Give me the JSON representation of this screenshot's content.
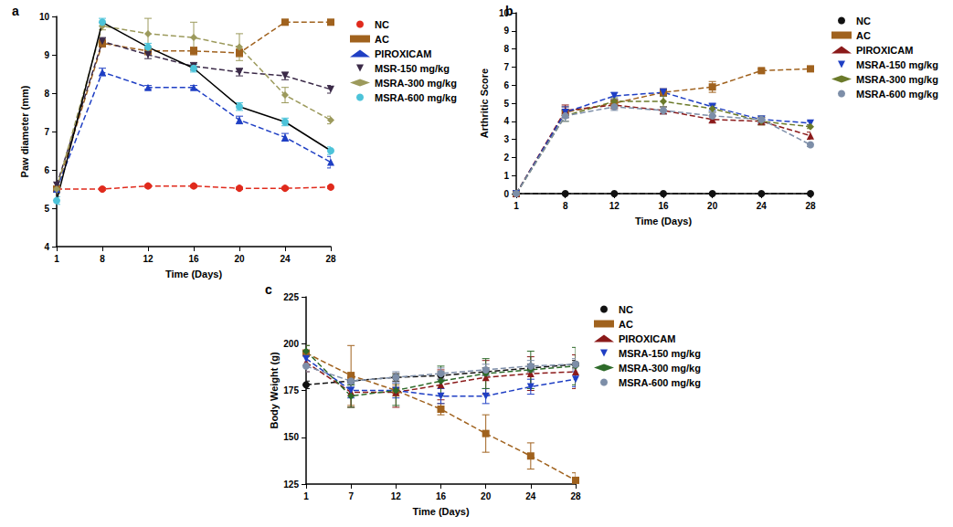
{
  "chart_data": [
    {
      "type": "line",
      "title": "a",
      "x_label": "Time (Days)",
      "y_label": "Paw diameter (mm)",
      "categories": [
        "1",
        "8",
        "12",
        "16",
        "20",
        "24",
        "28"
      ],
      "ylim": [
        4,
        10
      ],
      "yticks": [
        4,
        5,
        6,
        7,
        8,
        9,
        10
      ],
      "grid": false,
      "series": [
        {
          "name": "NC",
          "color": "#e02a1c",
          "marker": "circle",
          "line_style": "dashed",
          "values": [
            5.5,
            5.5,
            5.58,
            5.58,
            5.52,
            5.52,
            5.55
          ],
          "errors": [
            0.03,
            0.03,
            0.03,
            0.03,
            0.03,
            0.03,
            0.03
          ]
        },
        {
          "name": "AC",
          "color": "#a0621e",
          "marker": "square",
          "line_style": "dashed",
          "values": [
            5.5,
            9.3,
            9.1,
            9.1,
            9.05,
            9.85,
            9.85
          ],
          "errors": [
            0.1,
            0.1,
            0.1,
            0.1,
            0.1,
            0.05,
            0.05
          ]
        },
        {
          "name": "PIROXICAM",
          "color": "#1f3fc4",
          "marker": "triangle",
          "line_style": "dashed",
          "values": [
            5.5,
            8.55,
            8.15,
            8.15,
            7.3,
            6.85,
            6.2
          ],
          "errors": [
            0.1,
            0.1,
            0.05,
            0.05,
            0.1,
            0.1,
            0.15
          ]
        },
        {
          "name": "MSR-150 mg/kg",
          "color": "#3b2a48",
          "marker": "triangle_down",
          "line_style": "dashed",
          "values": [
            5.6,
            9.35,
            9.0,
            8.7,
            8.55,
            8.45,
            8.1
          ],
          "errors": [
            0.1,
            0.1,
            0.1,
            0.1,
            0.1,
            0.1,
            0.1
          ]
        },
        {
          "name": "MSRA-300 mg/kg",
          "color": "#9c9a5c",
          "marker": "diamond",
          "line_style": "dashed",
          "values": [
            5.5,
            9.75,
            9.55,
            9.45,
            9.2,
            7.95,
            7.3
          ],
          "errors": [
            0.1,
            0.1,
            0.4,
            0.4,
            0.35,
            0.2,
            0.1
          ]
        },
        {
          "name": "MSRA-600 mg/kg",
          "color": "#4cc3d9",
          "marker": "circle",
          "line_style": "solid",
          "values": [
            5.2,
            9.85,
            9.2,
            8.65,
            7.65,
            7.25,
            6.5
          ],
          "errors": [
            0.1,
            0.1,
            0.1,
            0.1,
            0.1,
            0.1,
            0.1
          ]
        }
      ]
    },
    {
      "type": "line",
      "title": "b",
      "x_label": "Time (Days)",
      "y_label": "Arthritic Score",
      "categories": [
        "1",
        "8",
        "12",
        "16",
        "20",
        "24",
        "28"
      ],
      "ylim": [
        0,
        10
      ],
      "yticks": [
        0,
        1,
        2,
        3,
        4,
        5,
        6,
        7,
        8,
        9,
        10
      ],
      "grid": false,
      "series": [
        {
          "name": "NC",
          "color": "#111111",
          "marker": "circle",
          "line_style": "dashed",
          "values": [
            0,
            0,
            0,
            0,
            0,
            0,
            0
          ],
          "errors": [
            0,
            0,
            0,
            0,
            0,
            0,
            0
          ]
        },
        {
          "name": "AC",
          "color": "#a0621e",
          "marker": "square",
          "line_style": "dashed",
          "values": [
            0,
            4.5,
            5.0,
            5.6,
            5.9,
            6.8,
            6.9
          ],
          "errors": [
            0,
            0.3,
            0.2,
            0.2,
            0.3,
            0.1,
            0.1
          ]
        },
        {
          "name": "PIROXICAM",
          "color": "#8b1a1a",
          "marker": "triangle",
          "line_style": "dashed",
          "values": [
            0,
            4.6,
            4.9,
            4.6,
            4.1,
            4.0,
            3.2
          ],
          "errors": [
            0,
            0.3,
            0.2,
            0.2,
            0.2,
            0.2,
            0.2
          ]
        },
        {
          "name": "MSRA-150 mg/kg",
          "color": "#1f3fc4",
          "marker": "triangle_down",
          "line_style": "dashed",
          "values": [
            0,
            4.5,
            5.4,
            5.6,
            4.8,
            4.1,
            3.9
          ],
          "errors": [
            0,
            0.3,
            0.2,
            0.2,
            0.2,
            0.2,
            0.1
          ]
        },
        {
          "name": "MSRA-300 mg/kg",
          "color": "#6b7a2a",
          "marker": "diamond",
          "line_style": "dashed",
          "values": [
            0,
            4.3,
            5.1,
            5.1,
            4.7,
            4.0,
            3.7
          ],
          "errors": [
            0,
            0.3,
            0.2,
            0.3,
            0.2,
            0.2,
            0.1
          ]
        },
        {
          "name": "MSRA-600 mg/kg",
          "color": "#7d8ea8",
          "marker": "circle",
          "line_style": "dashed",
          "values": [
            0,
            4.3,
            4.8,
            4.6,
            4.3,
            4.1,
            2.7
          ],
          "errors": [
            0,
            0.3,
            0.2,
            0.2,
            0.2,
            0.2,
            0.1
          ]
        }
      ]
    },
    {
      "type": "line",
      "title": "c",
      "x_label": "Time (Days)",
      "y_label": "Body Weight (g)",
      "categories": [
        "1",
        "7",
        "12",
        "16",
        "20",
        "24",
        "28"
      ],
      "ylim": [
        125,
        225
      ],
      "yticks": [
        125,
        150,
        175,
        200,
        225
      ],
      "grid": false,
      "series": [
        {
          "name": "NC",
          "color": "#111111",
          "marker": "circle",
          "line_style": "dashed",
          "values": [
            178,
            180,
            182,
            183,
            185,
            187,
            189
          ],
          "errors": [
            2,
            2,
            2,
            2,
            2,
            2,
            2
          ]
        },
        {
          "name": "AC",
          "color": "#a0621e",
          "marker": "square",
          "line_style": "dashed",
          "values": [
            195,
            183,
            175,
            165,
            152,
            140,
            127
          ],
          "errors": [
            4,
            16,
            3,
            3,
            10,
            7,
            4
          ]
        },
        {
          "name": "PIROXICAM",
          "color": "#8b1a1a",
          "marker": "triangle",
          "line_style": "dashed",
          "values": [
            190,
            174,
            174,
            178,
            182,
            184,
            185
          ],
          "errors": [
            5,
            8,
            8,
            8,
            9,
            9,
            9
          ]
        },
        {
          "name": "MSRA-150 mg/kg",
          "color": "#1f3fc4",
          "marker": "triangle_down",
          "line_style": "dashed",
          "values": [
            192,
            175,
            175,
            172,
            172,
            177,
            181
          ],
          "errors": [
            4,
            4,
            4,
            4,
            4,
            4,
            4
          ]
        },
        {
          "name": "MSRA-300 mg/kg",
          "color": "#2e6b2a",
          "marker": "diamond",
          "line_style": "dashed",
          "values": [
            196,
            172,
            175,
            180,
            184,
            186,
            188
          ],
          "errors": [
            3,
            6,
            8,
            8,
            8,
            10,
            10
          ]
        },
        {
          "name": "MSRA-600 mg/kg",
          "color": "#7d8ea8",
          "marker": "circle",
          "line_style": "dashed",
          "values": [
            188,
            180,
            182,
            184,
            186,
            188,
            189
          ],
          "errors": [
            3,
            3,
            3,
            3,
            3,
            3,
            3
          ]
        }
      ]
    }
  ]
}
